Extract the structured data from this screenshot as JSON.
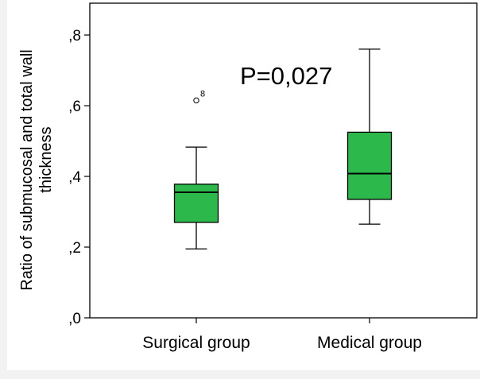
{
  "chart_data": {
    "type": "box",
    "ylabel_line1": "Ratio of submucosal and total wall",
    "ylabel_line2": "thickness",
    "ylim": [
      0,
      0.89
    ],
    "yticks": [
      {
        "value": 0.0,
        "label": ",0"
      },
      {
        "value": 0.2,
        "label": ",2"
      },
      {
        "value": 0.4,
        "label": ",4"
      },
      {
        "value": 0.6,
        "label": ",6"
      },
      {
        "value": 0.8,
        "label": ",8"
      }
    ],
    "categories": [
      "Surgical group",
      "Medical group"
    ],
    "boxes": [
      {
        "category": "Surgical group",
        "min": 0.195,
        "q1": 0.27,
        "median": 0.355,
        "q3": 0.378,
        "max": 0.483,
        "outliers": [
          {
            "value": 0.615,
            "label": "8"
          }
        ]
      },
      {
        "category": "Medical group",
        "min": 0.265,
        "q1": 0.335,
        "median": 0.408,
        "q3": 0.525,
        "max": 0.76,
        "outliers": []
      }
    ],
    "annotation": "P=0,027",
    "box_color": "#2db84b",
    "grid": false
  }
}
